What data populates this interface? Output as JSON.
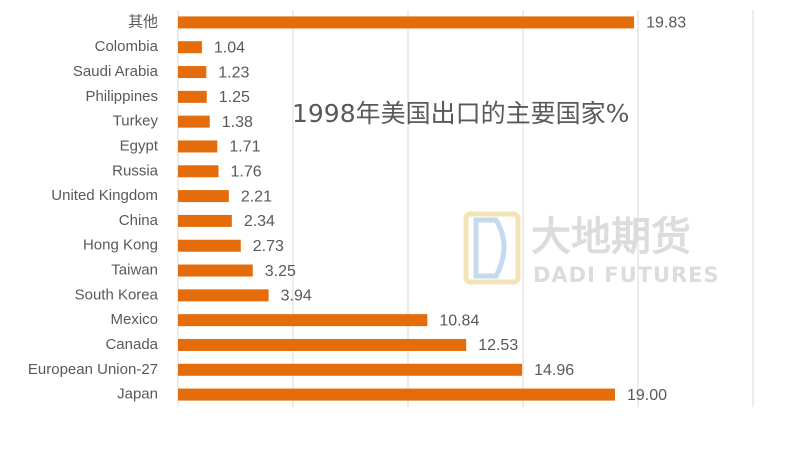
{
  "chart_data": {
    "type": "bar",
    "orientation": "horizontal",
    "title": "1998年美国出口的主要国家%",
    "categories": [
      "其他",
      "Colombia",
      "Saudi Arabia",
      "Philippines",
      "Turkey",
      "Egypt",
      "Russia",
      "United Kingdom",
      "China",
      "Hong Kong",
      "Taiwan",
      "South Korea",
      "Mexico",
      "Canada",
      "European Union-27",
      "Japan"
    ],
    "values": [
      19.83,
      1.04,
      1.23,
      1.25,
      1.38,
      1.71,
      1.76,
      2.21,
      2.34,
      2.73,
      3.25,
      3.94,
      10.84,
      12.53,
      14.96,
      19.0
    ],
    "value_labels": [
      "19.83",
      "1.04",
      "1.23",
      "1.25",
      "1.38",
      "1.71",
      "1.76",
      "2.21",
      "2.34",
      "2.73",
      "3.25",
      "3.94",
      "10.84",
      "12.53",
      "14.96",
      "19.00"
    ],
    "xlim": [
      0,
      25
    ],
    "x_gridlines": [
      0,
      5,
      10,
      15,
      20,
      25
    ],
    "grid": true,
    "xlabel": "",
    "ylabel": "",
    "colors": {
      "bar": "#E46C0A",
      "grid": "#D9D9D9",
      "text": "#595959"
    }
  },
  "watermark": {
    "chinese": "大地期货",
    "english": "DADI FUTURES",
    "colors": {
      "text": "#D9D9D9",
      "logo_blue": "#BDD7EE",
      "logo_gold": "#F2E2B0"
    }
  }
}
